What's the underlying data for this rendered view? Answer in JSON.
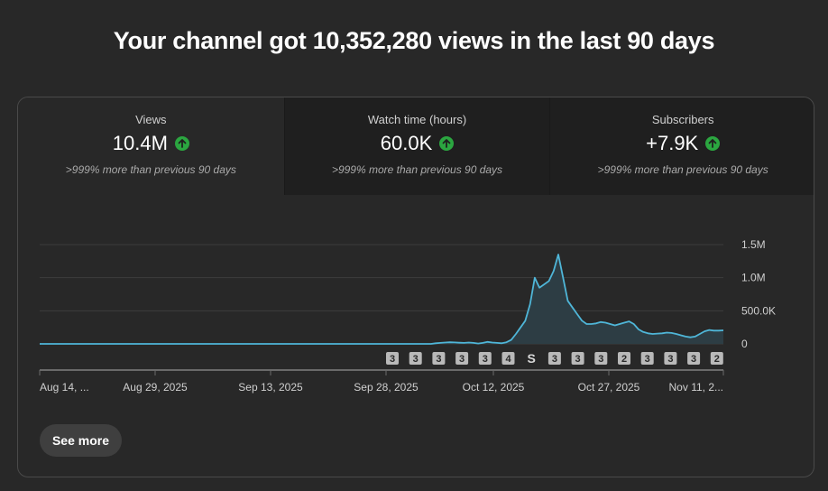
{
  "headline": "Your channel got 10,352,280 views in the last 90 days",
  "metrics": [
    {
      "label": "Views",
      "value": "10.4M",
      "change": ">999% more than previous 90 days",
      "trend_icon": "arrow-up-circle-icon"
    },
    {
      "label": "Watch time (hours)",
      "value": "60.0K",
      "change": ">999% more than previous 90 days",
      "trend_icon": "arrow-up-circle-icon"
    },
    {
      "label": "Subscribers",
      "value": "+7.9K",
      "change": ">999% more than previous 90 days",
      "trend_icon": "arrow-up-circle-icon"
    }
  ],
  "colors": {
    "accent_line": "#4fb6d8",
    "trend_up": "#2ba640",
    "background": "#282828"
  },
  "chart_data": {
    "type": "area",
    "y_ticks": [
      "1.5M",
      "1.0M",
      "500.0K",
      "0"
    ],
    "ylim": [
      0,
      1500000
    ],
    "x_labels": [
      "Aug 14, ...",
      "Aug 29, 2025",
      "Sep 13, 2025",
      "Sep 28, 2025",
      "Oct 12, 2025",
      "Oct 27, 2025",
      "Nov 11, 2..."
    ],
    "x": [
      0,
      5,
      10,
      15,
      20,
      25,
      30,
      35,
      40,
      45,
      50,
      55,
      57,
      59,
      61,
      63,
      65,
      67,
      69,
      71,
      73,
      75,
      77,
      79,
      81,
      83,
      85,
      87,
      89,
      91,
      93,
      95,
      97,
      99,
      101,
      103,
      105,
      107,
      109,
      111,
      113,
      115,
      117,
      119,
      121,
      123,
      125,
      127,
      129,
      131,
      133,
      135,
      137,
      139,
      141,
      143,
      145,
      147,
      149,
      151,
      153,
      155,
      157,
      159,
      161,
      163,
      165,
      167,
      169,
      171,
      173,
      175,
      177,
      179,
      181,
      183,
      185,
      187
    ],
    "values": [
      0,
      0,
      0,
      0,
      0,
      0,
      0,
      0,
      0,
      0,
      0,
      0,
      0,
      0,
      0,
      0,
      0,
      0,
      0,
      0,
      0,
      0,
      0,
      0,
      0,
      0,
      0,
      0,
      0,
      0,
      0,
      0,
      0,
      0,
      0,
      0,
      0,
      0,
      0,
      0,
      0,
      0,
      0,
      0,
      0,
      0,
      0,
      0,
      0,
      0,
      0,
      0,
      0,
      0,
      0,
      0,
      0,
      0,
      0,
      0,
      0,
      0,
      0,
      0,
      0,
      0,
      0,
      0,
      0,
      0,
      0,
      0,
      0,
      0,
      0,
      0,
      0,
      0
    ],
    "series": [
      {
        "name": "",
        "points": [
          [
            0,
            0
          ],
          [
            5,
            0
          ],
          [
            10,
            0
          ],
          [
            15,
            0
          ],
          [
            20,
            0
          ],
          [
            25,
            0
          ],
          [
            30,
            0
          ],
          [
            35,
            0
          ],
          [
            40,
            0
          ],
          [
            45,
            0
          ],
          [
            50,
            0
          ],
          [
            55,
            0
          ],
          [
            60,
            0
          ],
          [
            65,
            0
          ],
          [
            70,
            0
          ],
          [
            75,
            0
          ],
          [
            80,
            0
          ],
          [
            85,
            0
          ],
          [
            90,
            0
          ],
          [
            95,
            0
          ],
          [
            100,
            0
          ],
          [
            105,
            0
          ],
          [
            110,
            0
          ],
          [
            115,
            0
          ],
          [
            120,
            0
          ],
          [
            125,
            0
          ],
          [
            130,
            0
          ],
          [
            135,
            0
          ],
          [
            140,
            0
          ],
          [
            145,
            0
          ],
          [
            150,
            0
          ],
          [
            155,
            0
          ],
          [
            160,
            0
          ],
          [
            165,
            0
          ],
          [
            170,
            0
          ],
          [
            175,
            0
          ],
          [
            180,
            0
          ],
          [
            185,
            0
          ],
          [
            190,
            0
          ],
          [
            195,
            0
          ],
          [
            200,
            0
          ],
          [
            205,
            0
          ],
          [
            210,
            0
          ],
          [
            215,
            0
          ],
          [
            220,
            0
          ],
          [
            225,
            0
          ],
          [
            230,
            0
          ],
          [
            235,
            0
          ],
          [
            240,
            0
          ],
          [
            245,
            0
          ],
          [
            250,
            0
          ],
          [
            255,
            0
          ],
          [
            260,
            0
          ],
          [
            265,
            0
          ],
          [
            270,
            0
          ],
          [
            275,
            0
          ],
          [
            280,
            0
          ],
          [
            285,
            0
          ],
          [
            290,
            0
          ],
          [
            295,
            0
          ],
          [
            300,
            0
          ],
          [
            305,
            0
          ],
          [
            310,
            0
          ],
          [
            315,
            0
          ],
          [
            320,
            0
          ],
          [
            325,
            0
          ],
          [
            330,
            0
          ],
          [
            335,
            0
          ],
          [
            340,
            0
          ],
          [
            345,
            0
          ],
          [
            350,
            0
          ],
          [
            355,
            0
          ],
          [
            360,
            0
          ],
          [
            365,
            0
          ],
          [
            370,
            0
          ],
          [
            375,
            0
          ],
          [
            380,
            0
          ],
          [
            385,
            0
          ],
          [
            390,
            0
          ],
          [
            395,
            0
          ],
          [
            400,
            0
          ],
          [
            405,
            0
          ],
          [
            410,
            0
          ],
          [
            415,
            0
          ],
          [
            420,
            10000
          ],
          [
            425,
            15000
          ],
          [
            430,
            20000
          ],
          [
            435,
            25000
          ],
          [
            440,
            22000
          ],
          [
            445,
            18000
          ],
          [
            450,
            15000
          ],
          [
            455,
            20000
          ],
          [
            460,
            15000
          ],
          [
            465,
            5000
          ],
          [
            470,
            15000
          ],
          [
            475,
            30000
          ],
          [
            480,
            20000
          ],
          [
            485,
            15000
          ],
          [
            490,
            10000
          ],
          [
            495,
            25000
          ],
          [
            500,
            60000
          ],
          [
            505,
            150000
          ],
          [
            510,
            250000
          ],
          [
            515,
            350000
          ],
          [
            520,
            600000
          ],
          [
            525,
            1000000
          ],
          [
            530,
            850000
          ],
          [
            535,
            900000
          ],
          [
            540,
            950000
          ],
          [
            545,
            1100000
          ],
          [
            550,
            1350000
          ],
          [
            555,
            1000000
          ],
          [
            560,
            650000
          ],
          [
            565,
            550000
          ],
          [
            570,
            450000
          ],
          [
            575,
            350000
          ],
          [
            580,
            300000
          ],
          [
            585,
            300000
          ],
          [
            590,
            310000
          ],
          [
            595,
            330000
          ],
          [
            600,
            320000
          ],
          [
            605,
            300000
          ],
          [
            610,
            280000
          ],
          [
            615,
            300000
          ],
          [
            620,
            320000
          ],
          [
            625,
            340000
          ],
          [
            630,
            300000
          ],
          [
            635,
            220000
          ],
          [
            640,
            180000
          ],
          [
            645,
            160000
          ],
          [
            650,
            150000
          ],
          [
            655,
            155000
          ],
          [
            660,
            160000
          ],
          [
            665,
            170000
          ],
          [
            670,
            165000
          ],
          [
            675,
            150000
          ],
          [
            680,
            130000
          ],
          [
            685,
            110000
          ],
          [
            690,
            100000
          ],
          [
            695,
            110000
          ],
          [
            700,
            150000
          ],
          [
            705,
            190000
          ],
          [
            710,
            210000
          ],
          [
            715,
            200000
          ],
          [
            720,
            200000
          ],
          [
            725,
            205000
          ]
        ]
      }
    ],
    "markers": [
      "3",
      "3",
      "3",
      "3",
      "3",
      "4",
      "short",
      "3",
      "3",
      "3",
      "2",
      "3",
      "3",
      "3",
      "2"
    ],
    "grid": true
  },
  "see_more": "See more"
}
